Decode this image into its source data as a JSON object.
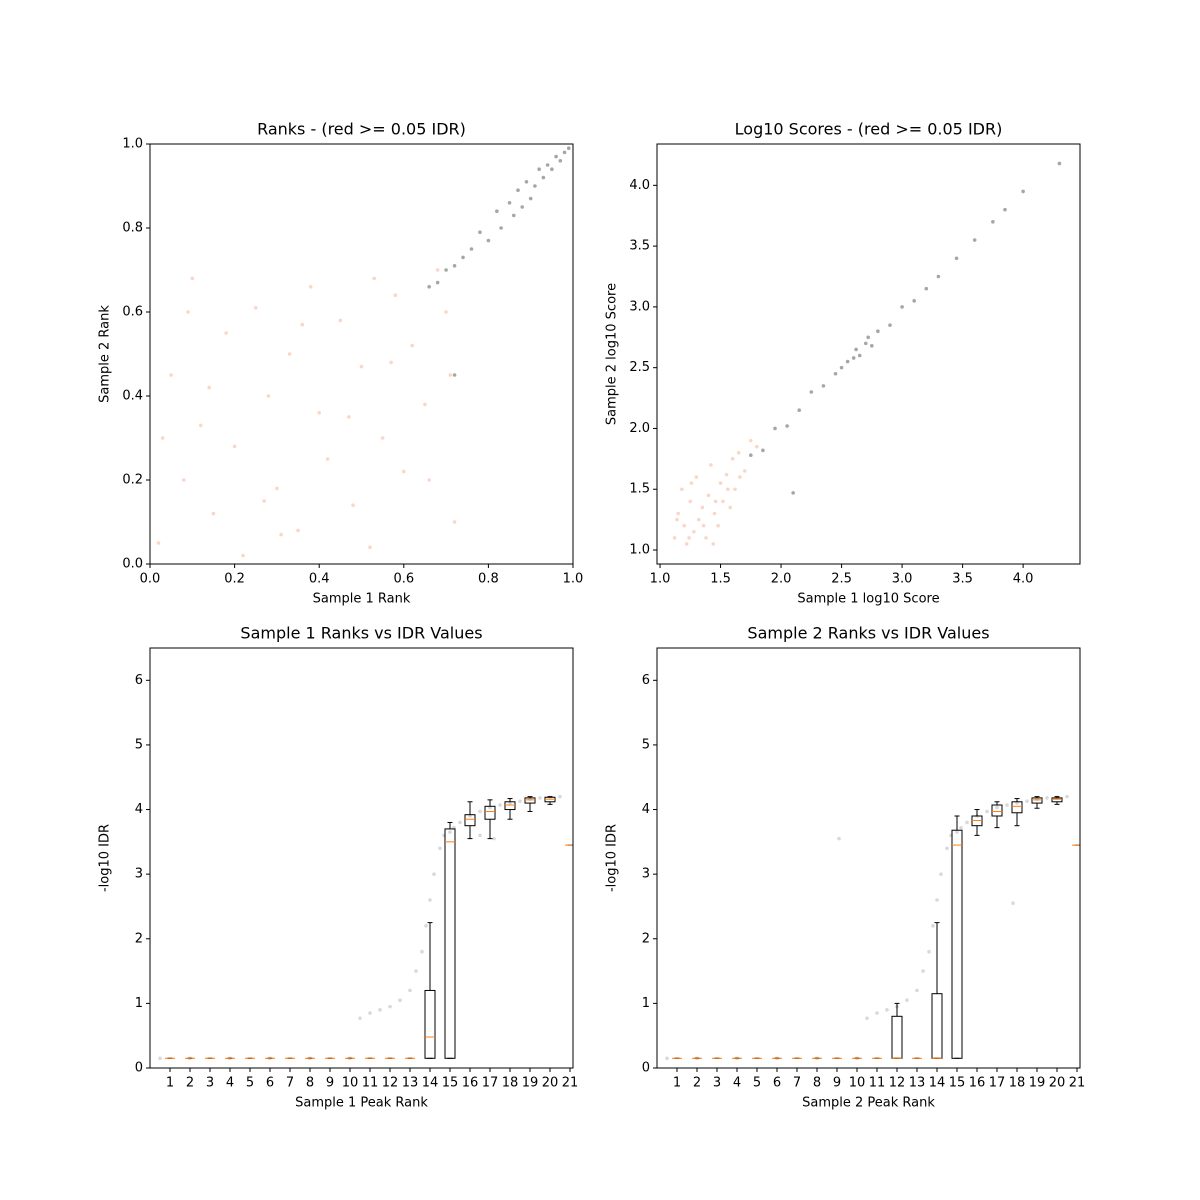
{
  "chart_data": [
    {
      "type": "scatter",
      "title": "Ranks - (red >= 0.05 IDR)",
      "x_label": "Sample 1 Rank",
      "y_label": "Sample 2 Rank",
      "xlim": [
        0,
        1
      ],
      "ylim": [
        0,
        1
      ],
      "xticks": [
        {
          "value": 0,
          "label": "0.0"
        },
        0.2,
        0.4,
        0.6,
        0.8,
        {
          "value": 1,
          "label": "1.0"
        }
      ],
      "yticks": [
        {
          "value": 0,
          "label": "0.0"
        },
        0.2,
        0.4,
        0.6,
        0.8,
        {
          "value": 1,
          "label": "1.0"
        }
      ],
      "series": [
        {
          "color": "#f4a582",
          "alpha": 0.45,
          "x": [
            0.02,
            0.05,
            0.08,
            0.1,
            0.12,
            0.15,
            0.18,
            0.2,
            0.22,
            0.25,
            0.28,
            0.3,
            0.33,
            0.35,
            0.38,
            0.4,
            0.42,
            0.45,
            0.48,
            0.5,
            0.52,
            0.55,
            0.58,
            0.6,
            0.62,
            0.65,
            0.68,
            0.7,
            0.72,
            0.03,
            0.14,
            0.27,
            0.36,
            0.47,
            0.57,
            0.66,
            0.09,
            0.31,
            0.53,
            0.71
          ],
          "values": [
            0.05,
            0.45,
            0.2,
            0.68,
            0.33,
            0.12,
            0.55,
            0.28,
            0.02,
            0.61,
            0.4,
            0.18,
            0.5,
            0.08,
            0.66,
            0.36,
            0.25,
            0.58,
            0.14,
            0.47,
            0.04,
            0.3,
            0.64,
            0.22,
            0.52,
            0.38,
            0.7,
            0.6,
            0.1,
            0.3,
            0.42,
            0.15,
            0.57,
            0.35,
            0.48,
            0.2,
            0.6,
            0.07,
            0.68,
            0.45
          ]
        },
        {
          "color": "#000000",
          "alpha": 0.35,
          "x": [
            0.66,
            0.68,
            0.7,
            0.72,
            0.74,
            0.76,
            0.78,
            0.8,
            0.82,
            0.83,
            0.85,
            0.86,
            0.87,
            0.88,
            0.89,
            0.9,
            0.91,
            0.92,
            0.93,
            0.94,
            0.95,
            0.96,
            0.97,
            0.98,
            0.99,
            0.72
          ],
          "values": [
            0.66,
            0.67,
            0.7,
            0.71,
            0.73,
            0.75,
            0.79,
            0.77,
            0.84,
            0.8,
            0.86,
            0.83,
            0.89,
            0.85,
            0.91,
            0.87,
            0.9,
            0.94,
            0.92,
            0.95,
            0.94,
            0.97,
            0.96,
            0.98,
            0.99,
            0.45
          ]
        }
      ]
    },
    {
      "type": "scatter",
      "title": "Log10 Scores - (red >= 0.05 IDR)",
      "x_label": "Sample 1 log10 Score",
      "y_label": "Sample 2 log10 Score",
      "xlim": [
        0.975,
        4.47
      ],
      "ylim": [
        0.885,
        4.34
      ],
      "xticks": [
        {
          "value": 1,
          "label": "1.0"
        },
        1.5,
        {
          "value": 2,
          "label": "2.0"
        },
        2.5,
        {
          "value": 3,
          "label": "3.0"
        },
        3.5,
        {
          "value": 4,
          "label": "4.0"
        }
      ],
      "yticks": [
        {
          "value": 1,
          "label": "1.0"
        },
        1.5,
        {
          "value": 2,
          "label": "2.0"
        },
        2.5,
        {
          "value": 3,
          "label": "3.0"
        },
        3.5,
        {
          "value": 4,
          "label": "4.0"
        }
      ],
      "series": [
        {
          "color": "#f4a582",
          "alpha": 0.45,
          "x": [
            1.12,
            1.15,
            1.18,
            1.2,
            1.22,
            1.25,
            1.28,
            1.3,
            1.32,
            1.35,
            1.38,
            1.4,
            1.42,
            1.45,
            1.48,
            1.5,
            1.52,
            1.55,
            1.58,
            1.6,
            1.62,
            1.65,
            1.7,
            1.75,
            1.8,
            1.14,
            1.26,
            1.36,
            1.46,
            1.56,
            1.66,
            1.24,
            1.44
          ],
          "values": [
            1.1,
            1.3,
            1.5,
            1.2,
            1.05,
            1.4,
            1.15,
            1.6,
            1.25,
            1.35,
            1.1,
            1.45,
            1.7,
            1.3,
            1.2,
            1.55,
            1.4,
            1.62,
            1.35,
            1.75,
            1.5,
            1.8,
            1.65,
            1.9,
            1.85,
            1.25,
            1.55,
            1.2,
            1.4,
            1.5,
            1.6,
            1.1,
            1.05
          ]
        },
        {
          "color": "#000000",
          "alpha": 0.35,
          "x": [
            1.75,
            1.85,
            1.95,
            2.05,
            2.15,
            2.25,
            2.35,
            2.45,
            2.5,
            2.55,
            2.6,
            2.62,
            2.65,
            2.7,
            2.72,
            2.75,
            2.8,
            2.9,
            3.0,
            3.1,
            3.2,
            3.3,
            3.45,
            3.6,
            3.75,
            3.85,
            4.0,
            4.3,
            2.1
          ],
          "values": [
            1.78,
            1.82,
            2.0,
            2.02,
            2.15,
            2.3,
            2.35,
            2.45,
            2.5,
            2.55,
            2.58,
            2.65,
            2.6,
            2.7,
            2.75,
            2.68,
            2.8,
            2.85,
            3.0,
            3.05,
            3.15,
            3.25,
            3.4,
            3.55,
            3.7,
            3.8,
            3.95,
            4.18,
            1.47
          ]
        }
      ]
    },
    {
      "type": "box",
      "title": "Sample 1 Ranks vs IDR Values",
      "x_label": "Sample 1 Peak Rank",
      "y_label": "-log10 IDR",
      "xlim": [
        0,
        21.15
      ],
      "ylim": [
        0,
        6.5
      ],
      "xticks": [
        1,
        2,
        3,
        4,
        5,
        6,
        7,
        8,
        9,
        10,
        11,
        12,
        13,
        14,
        15,
        16,
        17,
        18,
        19,
        20,
        21
      ],
      "yticks": [
        0,
        1,
        2,
        3,
        4,
        5,
        6
      ],
      "box_color": "#000000",
      "median_color": "#ff7f0e",
      "boxes": [
        {
          "whislo": 0.15,
          "q1": 0.15,
          "med": 0.15,
          "q3": 0.15,
          "whishi": 0.15
        },
        {
          "whislo": 0.15,
          "q1": 0.15,
          "med": 0.15,
          "q3": 0.15,
          "whishi": 0.15
        },
        {
          "whislo": 0.15,
          "q1": 0.15,
          "med": 0.15,
          "q3": 0.15,
          "whishi": 0.15
        },
        {
          "whislo": 0.15,
          "q1": 0.15,
          "med": 0.15,
          "q3": 0.15,
          "whishi": 0.15
        },
        {
          "whislo": 0.15,
          "q1": 0.15,
          "med": 0.15,
          "q3": 0.15,
          "whishi": 0.15
        },
        {
          "whislo": 0.15,
          "q1": 0.15,
          "med": 0.15,
          "q3": 0.15,
          "whishi": 0.15
        },
        {
          "whislo": 0.15,
          "q1": 0.15,
          "med": 0.15,
          "q3": 0.15,
          "whishi": 0.15
        },
        {
          "whislo": 0.15,
          "q1": 0.15,
          "med": 0.15,
          "q3": 0.15,
          "whishi": 0.15
        },
        {
          "whislo": 0.15,
          "q1": 0.15,
          "med": 0.15,
          "q3": 0.15,
          "whishi": 0.15
        },
        {
          "whislo": 0.15,
          "q1": 0.15,
          "med": 0.15,
          "q3": 0.15,
          "whishi": 0.15
        },
        {
          "whislo": 0.15,
          "q1": 0.15,
          "med": 0.15,
          "q3": 0.15,
          "whishi": 0.15
        },
        {
          "whislo": 0.15,
          "q1": 0.15,
          "med": 0.15,
          "q3": 0.15,
          "whishi": 0.15
        },
        {
          "whislo": 0.15,
          "q1": 0.15,
          "med": 0.15,
          "q3": 0.15,
          "whishi": 0.15
        },
        {
          "whislo": 0.15,
          "q1": 0.15,
          "med": 0.48,
          "q3": 1.2,
          "whishi": 2.25
        },
        {
          "whislo": 0.15,
          "q1": 0.15,
          "med": 3.5,
          "q3": 3.7,
          "whishi": 3.8
        },
        {
          "whislo": 3.55,
          "q1": 3.75,
          "med": 3.85,
          "q3": 3.92,
          "whishi": 4.12
        },
        {
          "whislo": 3.55,
          "q1": 3.85,
          "med": 3.97,
          "q3": 4.05,
          "whishi": 4.15
        },
        {
          "whislo": 3.85,
          "q1": 4.0,
          "med": 4.07,
          "q3": 4.12,
          "whishi": 4.17
        },
        {
          "whislo": 3.97,
          "q1": 4.1,
          "med": 4.15,
          "q3": 4.18,
          "whishi": 4.2
        },
        {
          "whislo": 4.08,
          "q1": 4.12,
          "med": 4.16,
          "q3": 4.19,
          "whishi": 4.2
        },
        {
          "whislo": 3.45,
          "q1": 3.45,
          "med": 3.45,
          "q3": 3.45,
          "whishi": 3.45
        }
      ],
      "series": [
        {
          "color": "#808080",
          "alpha": 0.3,
          "x": [
            0.5,
            2,
            4,
            6,
            8,
            10,
            10.5,
            11,
            11.5,
            12,
            12.5,
            13,
            13.3,
            13.6,
            13.8,
            14,
            14.2,
            14.5,
            14.7,
            15,
            15.2,
            15.5,
            16,
            16.5,
            17,
            17.5,
            18,
            18.5,
            19,
            19.5,
            20,
            20.5,
            16.5,
            17.2
          ],
          "values": [
            0.15,
            0.15,
            0.15,
            0.15,
            0.15,
            0.15,
            0.77,
            0.85,
            0.9,
            0.95,
            1.05,
            1.2,
            1.5,
            1.8,
            2.2,
            2.6,
            3.0,
            3.4,
            3.6,
            3.65,
            3.72,
            3.8,
            3.9,
            3.97,
            4.03,
            4.07,
            4.1,
            4.13,
            4.16,
            4.18,
            4.19,
            4.2,
            3.6,
            3.55
          ]
        }
      ]
    },
    {
      "type": "box",
      "title": "Sample 2 Ranks vs IDR Values",
      "x_label": "Sample 2 Peak Rank",
      "y_label": "-log10 IDR",
      "xlim": [
        0,
        21.15
      ],
      "ylim": [
        0,
        6.5
      ],
      "xticks": [
        1,
        2,
        3,
        4,
        5,
        6,
        7,
        8,
        9,
        10,
        11,
        12,
        13,
        14,
        15,
        16,
        17,
        18,
        19,
        20,
        21
      ],
      "yticks": [
        0,
        1,
        2,
        3,
        4,
        5,
        6
      ],
      "box_color": "#000000",
      "median_color": "#ff7f0e",
      "boxes": [
        {
          "whislo": 0.15,
          "q1": 0.15,
          "med": 0.15,
          "q3": 0.15,
          "whishi": 0.15
        },
        {
          "whislo": 0.15,
          "q1": 0.15,
          "med": 0.15,
          "q3": 0.15,
          "whishi": 0.15
        },
        {
          "whislo": 0.15,
          "q1": 0.15,
          "med": 0.15,
          "q3": 0.15,
          "whishi": 0.15
        },
        {
          "whislo": 0.15,
          "q1": 0.15,
          "med": 0.15,
          "q3": 0.15,
          "whishi": 0.15
        },
        {
          "whislo": 0.15,
          "q1": 0.15,
          "med": 0.15,
          "q3": 0.15,
          "whishi": 0.15
        },
        {
          "whislo": 0.15,
          "q1": 0.15,
          "med": 0.15,
          "q3": 0.15,
          "whishi": 0.15
        },
        {
          "whislo": 0.15,
          "q1": 0.15,
          "med": 0.15,
          "q3": 0.15,
          "whishi": 0.15
        },
        {
          "whislo": 0.15,
          "q1": 0.15,
          "med": 0.15,
          "q3": 0.15,
          "whishi": 0.15
        },
        {
          "whislo": 0.15,
          "q1": 0.15,
          "med": 0.15,
          "q3": 0.15,
          "whishi": 0.15
        },
        {
          "whislo": 0.15,
          "q1": 0.15,
          "med": 0.15,
          "q3": 0.15,
          "whishi": 0.15
        },
        {
          "whislo": 0.15,
          "q1": 0.15,
          "med": 0.15,
          "q3": 0.15,
          "whishi": 0.15
        },
        {
          "whislo": 0.15,
          "q1": 0.15,
          "med": 0.15,
          "q3": 0.8,
          "whishi": 1.0
        },
        {
          "whislo": 0.15,
          "q1": 0.15,
          "med": 0.15,
          "q3": 0.15,
          "whishi": 0.15
        },
        {
          "whislo": 0.15,
          "q1": 0.15,
          "med": 0.15,
          "q3": 1.15,
          "whishi": 2.25
        },
        {
          "whislo": 0.15,
          "q1": 0.15,
          "med": 3.45,
          "q3": 3.68,
          "whishi": 3.9
        },
        {
          "whislo": 3.6,
          "q1": 3.75,
          "med": 3.83,
          "q3": 3.9,
          "whishi": 4.0
        },
        {
          "whislo": 3.72,
          "q1": 3.9,
          "med": 3.97,
          "q3": 4.07,
          "whishi": 4.12
        },
        {
          "whislo": 3.75,
          "q1": 3.95,
          "med": 4.05,
          "q3": 4.12,
          "whishi": 4.17
        },
        {
          "whislo": 4.02,
          "q1": 4.1,
          "med": 4.15,
          "q3": 4.18,
          "whishi": 4.2
        },
        {
          "whislo": 4.08,
          "q1": 4.12,
          "med": 4.16,
          "q3": 4.18,
          "whishi": 4.2
        },
        {
          "whislo": 3.45,
          "q1": 3.45,
          "med": 3.45,
          "q3": 3.45,
          "whishi": 3.45
        }
      ],
      "series": [
        {
          "color": "#808080",
          "alpha": 0.3,
          "x": [
            0.5,
            2,
            4,
            6,
            8,
            9.1,
            10,
            10.5,
            11,
            11.5,
            12,
            12.5,
            13,
            13.3,
            13.6,
            13.8,
            14,
            14.2,
            14.5,
            14.7,
            15,
            15.2,
            15.5,
            16,
            16.5,
            17,
            17.5,
            18,
            18.5,
            19,
            19.5,
            20,
            20.5,
            17.8
          ],
          "values": [
            0.15,
            0.15,
            0.15,
            0.15,
            0.15,
            3.55,
            0.15,
            0.77,
            0.85,
            0.9,
            0.95,
            1.05,
            1.2,
            1.5,
            1.8,
            2.2,
            2.6,
            3.0,
            3.4,
            3.6,
            3.65,
            3.72,
            3.8,
            3.9,
            3.97,
            4.03,
            4.07,
            4.1,
            4.13,
            4.16,
            4.18,
            4.19,
            4.2,
            2.55
          ]
        }
      ]
    }
  ]
}
